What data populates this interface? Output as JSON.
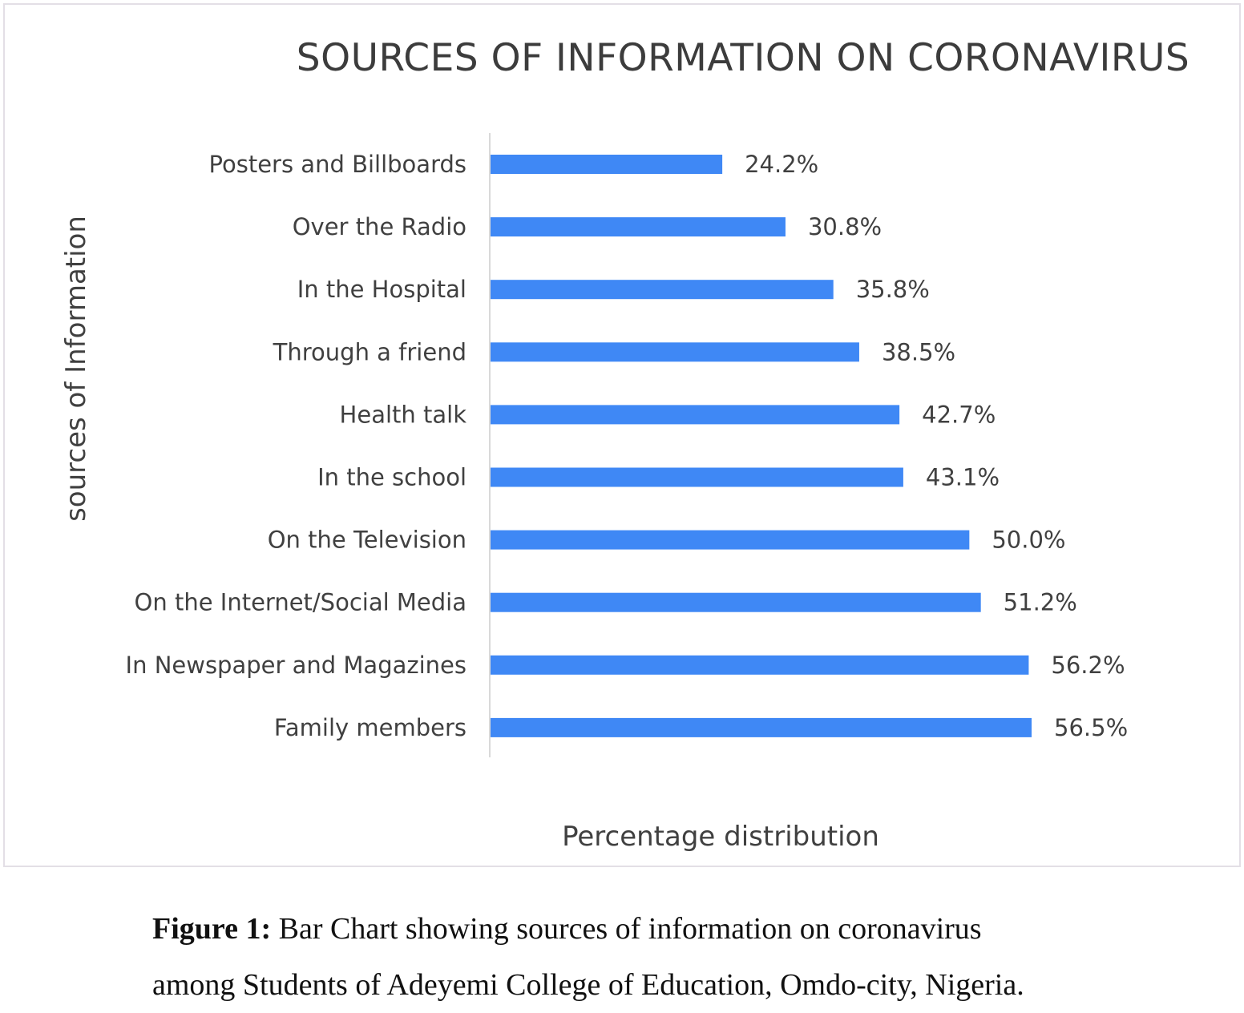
{
  "chart_data": {
    "type": "bar",
    "orientation": "horizontal",
    "title": "SOURCES OF INFORMATION ON CORONAVIRUS",
    "xlabel": "Percentage distribution",
    "ylabel": "sources of Information",
    "categories": [
      "Posters and Billboards",
      "Over the Radio",
      "In the Hospital",
      "Through a friend",
      "Health talk",
      "In the school",
      "On the Television",
      "On the Internet/Social Media",
      "In Newspaper and Magazines",
      "Family members"
    ],
    "values": [
      24.2,
      30.8,
      35.8,
      38.5,
      42.7,
      43.1,
      50.0,
      51.2,
      56.2,
      56.5
    ],
    "value_labels": [
      "24.2%",
      "30.8%",
      "35.8%",
      "38.5%",
      "42.7%",
      "43.1%",
      "50.0%",
      "51.2%",
      "56.2%",
      "56.5%"
    ],
    "xlim": [
      0,
      56.5
    ],
    "grid": false,
    "legend": "none",
    "bar_color": "#3f88f5"
  },
  "caption": {
    "label": "Figure 1:",
    "line1": " Bar Chart showing sources of information on coronavirus",
    "line2": "among Students of Adeyemi College of Education, Omdo-city, Nigeria."
  }
}
